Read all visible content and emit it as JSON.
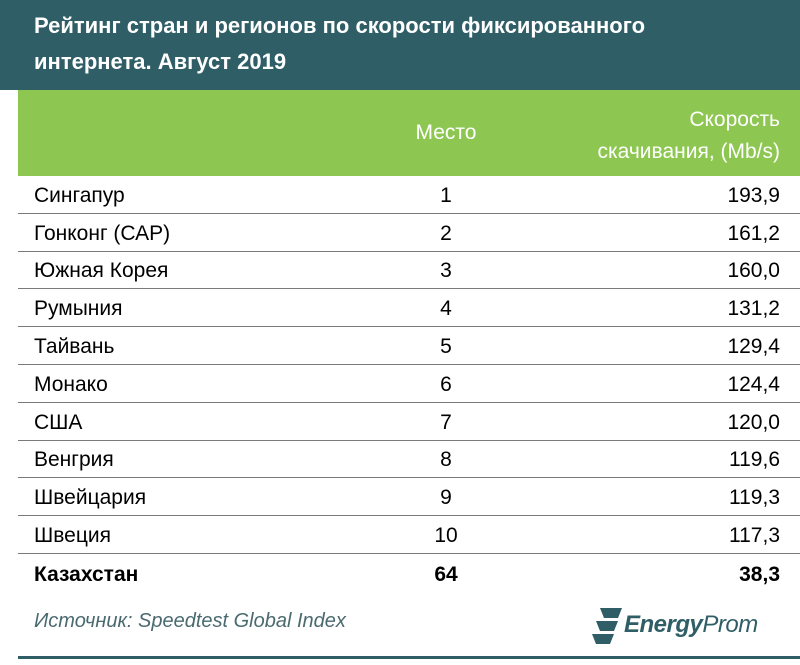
{
  "title": {
    "line1": "Рейтинг стран и регионов по скорости фиксированного",
    "line2": "интернета. Август 2019"
  },
  "header": {
    "place": "Место",
    "speed_line1": "Скорость",
    "speed_line2": "скачивания, (Mb/s)"
  },
  "chart_data": {
    "type": "table",
    "columns": [
      "",
      "Место",
      "Скорость скачивания, (Mb/s)"
    ],
    "rows": [
      {
        "name": "Сингапур",
        "place": "1",
        "speed": "193,9"
      },
      {
        "name": "Гонконг (САР)",
        "place": "2",
        "speed": "161,2"
      },
      {
        "name": "Южная Корея",
        "place": "3",
        "speed": "160,0"
      },
      {
        "name": "Румыния",
        "place": "4",
        "speed": "131,2"
      },
      {
        "name": "Тайвань",
        "place": "5",
        "speed": "129,4"
      },
      {
        "name": "Монако",
        "place": "6",
        "speed": "124,4"
      },
      {
        "name": "США",
        "place": "7",
        "speed": "120,0"
      },
      {
        "name": "Венгрия",
        "place": "8",
        "speed": "119,6"
      },
      {
        "name": "Швейцария",
        "place": "9",
        "speed": "119,3"
      },
      {
        "name": "Швеция",
        "place": "10",
        "speed": "117,3"
      },
      {
        "name": "Казахстан",
        "place": "64",
        "speed": "38,3",
        "highlight": true
      }
    ]
  },
  "footer": {
    "source": "Источник: Speedtest Global Index",
    "logo_bold": "Energy",
    "logo_thin": "Prom"
  },
  "colors": {
    "title_bg": "#2f5e66",
    "header_bg": "#8dc751",
    "logo": "#2f5e66"
  },
  "icons": {
    "logo_mark": "energyprom-logo-icon"
  }
}
